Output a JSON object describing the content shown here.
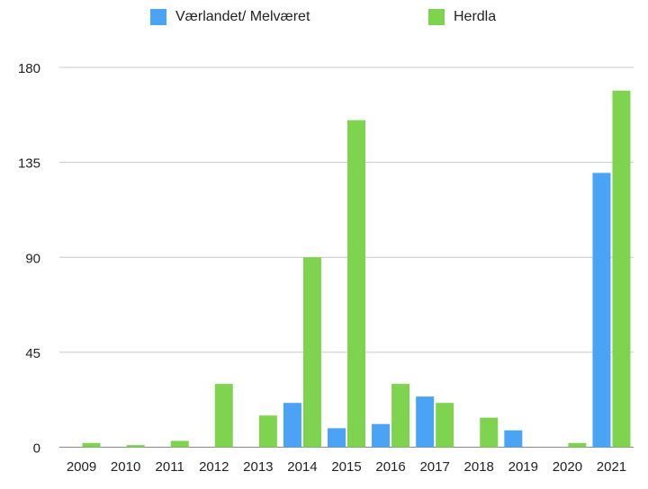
{
  "chart_data": {
    "type": "bar",
    "categories": [
      "2009",
      "2010",
      "2011",
      "2012",
      "2013",
      "2014",
      "2015",
      "2016",
      "2017",
      "2018",
      "2019",
      "2020",
      "2021"
    ],
    "series": [
      {
        "name": "Værlandet/ Melværet",
        "color": "#4aa3f5",
        "values": [
          0,
          0,
          0,
          0,
          0,
          21,
          9,
          11,
          24,
          0,
          8,
          0,
          130
        ]
      },
      {
        "name": "Herdla",
        "color": "#7fd44f",
        "values": [
          2,
          1,
          3,
          30,
          15,
          90,
          155,
          30,
          21,
          14,
          0,
          2,
          169
        ]
      }
    ],
    "ylim": [
      0,
      180
    ],
    "yticks": [
      0,
      45,
      90,
      135,
      180
    ],
    "grid": true,
    "legend_position": "top"
  }
}
